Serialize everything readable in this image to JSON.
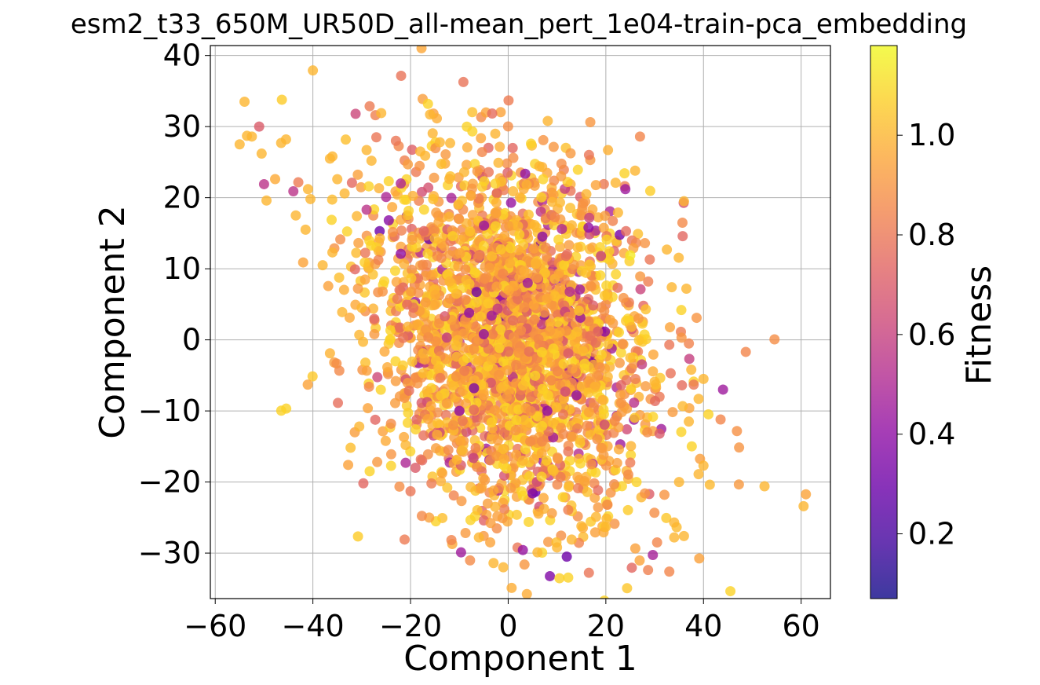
{
  "chart_data": {
    "type": "scatter",
    "title": "esm2_t33_650M_UR50D_all-mean_pert_1e04-train-pca_embedding",
    "xlabel": "Component 1",
    "ylabel": "Component 2",
    "xlim": [
      -61,
      66
    ],
    "ylim": [
      -36.4,
      41.4
    ],
    "xticks": [
      -60,
      -40,
      -20,
      0,
      20,
      40,
      60
    ],
    "yticks": [
      -30,
      -20,
      -10,
      0,
      10,
      20,
      30,
      40
    ],
    "xtick_labels": [
      "−60",
      "−40",
      "−20",
      "0",
      "20",
      "40",
      "60"
    ],
    "ytick_labels": [
      "−30",
      "−20",
      "−10",
      "0",
      "10",
      "20",
      "30",
      "40"
    ],
    "grid": true,
    "colormap": "plasma",
    "colorbar": {
      "label": "Fitness",
      "range": [
        0.07,
        1.18
      ],
      "ticks": [
        0.2,
        0.4,
        0.6,
        0.8,
        1.0
      ],
      "tick_labels": [
        "0.2",
        "0.4",
        "0.6",
        "0.8",
        "1.0"
      ]
    },
    "point_alpha": 0.8,
    "points": [
      [
        -54,
        33.5,
        1.0
      ],
      [
        -55,
        27.5,
        1.0
      ],
      [
        -53.5,
        28.7,
        1.0
      ],
      [
        -52.5,
        28.6,
        1.0
      ],
      [
        -51,
        30.0,
        0.7
      ],
      [
        -50.5,
        26.2,
        1.0
      ],
      [
        -50,
        21.9,
        0.55
      ],
      [
        -49.5,
        19.6,
        1.0
      ],
      [
        -46.5,
        27.7,
        1.0
      ],
      [
        -45.5,
        28.2,
        1.0
      ],
      [
        -44,
        20.9,
        0.55
      ],
      [
        -43.5,
        17.5,
        1.0
      ],
      [
        -41,
        21.2,
        1.0
      ],
      [
        -41.5,
        15.5,
        1.0
      ],
      [
        -40.5,
        19.8,
        1.0
      ],
      [
        -40,
        37.9,
        1.0
      ],
      [
        -38,
        10.5,
        1.0
      ],
      [
        -36.5,
        25.5,
        1.0
      ],
      [
        -36,
        25.8,
        1.0
      ],
      [
        -36,
        12.3,
        1.0
      ],
      [
        -35,
        22.6,
        1.0
      ],
      [
        -34,
        3.9,
        1.0
      ],
      [
        -33.5,
        20.6,
        1.0
      ],
      [
        -32,
        22.1,
        0.75
      ],
      [
        -31,
        17.4,
        1.0
      ],
      [
        -30.5,
        0.7,
        1.0
      ],
      [
        -30.5,
        -12.2,
        1.0
      ],
      [
        -30,
        4.5,
        1.0
      ],
      [
        -29,
        26.7,
        1.0
      ],
      [
        -29,
        18.3,
        0.55
      ],
      [
        -28.5,
        -6.6,
        0.85
      ],
      [
        -28,
        25.2,
        1.0
      ],
      [
        -27,
        28.5,
        0.8
      ],
      [
        -26,
        31.9,
        1.0
      ],
      [
        -25,
        20.1,
        0.5
      ],
      [
        -23,
        28.0,
        0.8
      ],
      [
        -22,
        12.1,
        0.4
      ],
      [
        -22,
        22.0,
        0.5
      ],
      [
        -21,
        -14.8,
        1.0
      ],
      [
        -21,
        -17.3,
        0.5
      ],
      [
        -20,
        -21.3,
        0.8
      ],
      [
        -19,
        -18.0,
        0.7
      ],
      [
        -18,
        26.5,
        1.0
      ],
      [
        -17,
        25.9,
        1.0
      ],
      [
        -16,
        31.7,
        1.0
      ],
      [
        -14,
        27.8,
        1.0
      ],
      [
        -12,
        8.2,
        1.0
      ],
      [
        -10,
        -10.0,
        0.4
      ],
      [
        -9,
        23.6,
        1.0
      ],
      [
        -8,
        3.8,
        0.4
      ],
      [
        -7,
        -6.8,
        0.35
      ],
      [
        -6,
        -27.8,
        1.0
      ],
      [
        -5,
        0.8,
        0.4
      ],
      [
        -4,
        23.6,
        0.8
      ],
      [
        -3,
        -31.4,
        1.0
      ],
      [
        -2,
        24.9,
        1.0
      ],
      [
        -1,
        -32.0,
        1.0
      ],
      [
        1,
        20.9,
        1.0
      ],
      [
        2,
        16.0,
        1.0
      ],
      [
        3,
        -17.0,
        1.0
      ],
      [
        4,
        8.0,
        0.45
      ],
      [
        5,
        -21.6,
        0.35
      ],
      [
        6,
        -29.9,
        1.0
      ],
      [
        8,
        -10.0,
        0.4
      ],
      [
        9,
        19.4,
        1.0
      ],
      [
        10,
        -29.2,
        1.0
      ],
      [
        11,
        15.6,
        0.5
      ],
      [
        12,
        -30.5,
        0.3
      ],
      [
        13,
        -28.1,
        1.0
      ],
      [
        14,
        -7.8,
        0.4
      ],
      [
        15,
        -26.2,
        1.0
      ],
      [
        16,
        20.5,
        1.0
      ],
      [
        17,
        -17.5,
        0.9
      ],
      [
        18,
        -24.9,
        1.0
      ],
      [
        19,
        11.8,
        0.6
      ],
      [
        20,
        -26.3,
        1.0
      ],
      [
        21,
        -21.5,
        0.9
      ],
      [
        22,
        22.1,
        1.0
      ],
      [
        22.5,
        17.9,
        1.0
      ],
      [
        24,
        21.2,
        0.45
      ],
      [
        25,
        11.9,
        1.14
      ],
      [
        26,
        23.8,
        1.0
      ],
      [
        27,
        28.6,
        0.85
      ],
      [
        28,
        13.6,
        0.9
      ],
      [
        28,
        -21.6,
        0.9
      ],
      [
        29,
        11.3,
        0.8
      ],
      [
        30,
        -5.9,
        1.0
      ],
      [
        30.5,
        -28.5,
        0.85
      ],
      [
        31,
        -13.2,
        0.7
      ],
      [
        32,
        -21.8,
        0.9
      ],
      [
        32.5,
        12.7,
        1.0
      ],
      [
        33,
        -0.7,
        0.8
      ],
      [
        33,
        -32.6,
        0.85
      ],
      [
        33.5,
        7.4,
        1.0
      ],
      [
        34,
        -25.7,
        1.0
      ],
      [
        34,
        -27.8,
        1.0
      ],
      [
        35,
        -20.0,
        1.0
      ],
      [
        35.5,
        0.3,
        0.9
      ],
      [
        36,
        19.5,
        1.0
      ],
      [
        36,
        -27.6,
        1.0
      ],
      [
        36.5,
        7.2,
        1.0
      ],
      [
        37,
        -11.5,
        1.0
      ],
      [
        37.5,
        -4.2,
        1.0
      ],
      [
        38,
        -6.3,
        0.8
      ],
      [
        39,
        -8.3,
        1.0
      ],
      [
        39,
        -18.9,
        1.0
      ],
      [
        40,
        -5.5,
        1.0
      ],
      [
        40,
        -17.7,
        1.0
      ],
      [
        43.5,
        -11.2,
        0.85
      ],
      [
        44,
        -7.0,
        0.45
      ],
      [
        52.5,
        -20.6,
        1.0
      ],
      [
        60.5,
        -23.4,
        1.0
      ]
    ],
    "cluster": {
      "note_hidden": "",
      "center": [
        1,
        0
      ],
      "spread": [
        14,
        12
      ]
    }
  }
}
